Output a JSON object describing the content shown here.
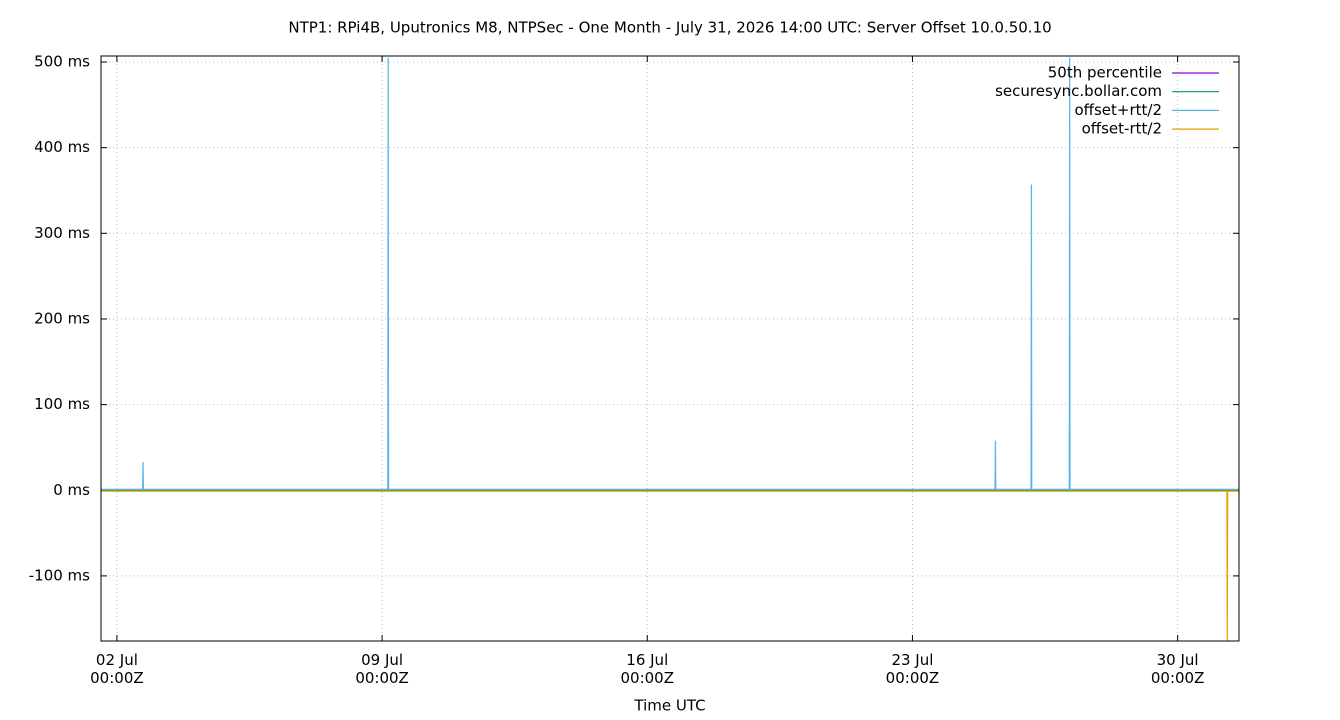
{
  "chart_data": {
    "type": "line",
    "title": "NTP1: RPi4B, Uputronics M8, NTPSec - One Month - July 31, 2026 14:00 UTC: Server Offset 10.0.50.10",
    "x_label": "Time UTC",
    "xlim": [
      1.58,
      31.62
    ],
    "ylim": [
      -176,
      507
    ],
    "xticks": [
      {
        "value": 2,
        "label": "02 Jul\n00:00Z"
      },
      {
        "value": 9,
        "label": "09 Jul\n00:00Z"
      },
      {
        "value": 16,
        "label": "16 Jul\n00:00Z"
      },
      {
        "value": 23,
        "label": "23 Jul\n00:00Z"
      },
      {
        "value": 30,
        "label": "30 Jul\n00:00Z"
      }
    ],
    "yticks": [
      {
        "value": -100,
        "label": "-100 ms"
      },
      {
        "value": 0,
        "label": "0 ms"
      },
      {
        "value": 100,
        "label": "100 ms"
      },
      {
        "value": 200,
        "label": "200 ms"
      },
      {
        "value": 300,
        "label": "300 ms"
      },
      {
        "value": 400,
        "label": "400 ms"
      },
      {
        "value": 500,
        "label": "500 ms"
      }
    ],
    "grid": true,
    "legend": "top-right",
    "series": [
      {
        "name": "50th percentile",
        "color": "#9400d3",
        "x": [
          1.6,
          31.62
        ],
        "values": [
          0,
          0
        ]
      },
      {
        "name": "securesync.bollar.com",
        "color": "#009e73",
        "x": [
          1.6,
          31.62
        ],
        "values": [
          0,
          0
        ]
      },
      {
        "name": "offset+rtt/2",
        "color": "#56b4e9",
        "x": [
          1.6,
          2.68,
          2.69,
          2.7,
          9.15,
          9.16,
          9.17,
          25.18,
          25.19,
          25.2,
          26.13,
          26.14,
          26.15,
          27.14,
          27.15,
          27.16,
          31.62
        ],
        "values": [
          1,
          1,
          33,
          1,
          1,
          505,
          1,
          1,
          58,
          1,
          1,
          357,
          1,
          1,
          505,
          1,
          1
        ]
      },
      {
        "name": "offset-rtt/2",
        "color": "#e69f00",
        "x": [
          1.6,
          31.3,
          31.31,
          31.32,
          31.62
        ],
        "values": [
          -1,
          -1,
          -185,
          -1,
          -1
        ]
      }
    ]
  }
}
